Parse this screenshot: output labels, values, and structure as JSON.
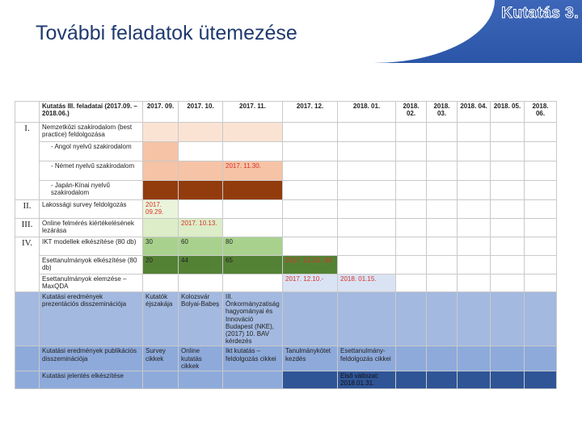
{
  "header": {
    "title": "További feladatok ütemezése",
    "slide_tag": "Kutatás 3."
  },
  "schedule": {
    "headers": [
      "Kutatás III. feladatai (2017.09. – 2018.06.)",
      "2017. 09.",
      "2017. 10.",
      "2017. 11.",
      "2017. 12.",
      "2018. 01.",
      "2018. 02.",
      "2018. 03.",
      "2018. 04.",
      "2018. 05.",
      "2018. 06."
    ],
    "groups": [
      "I.",
      "II.",
      "III.",
      "IV."
    ],
    "rows": [
      {
        "task": "Nemzetközi szakirodalom (best practice) feldolgozása",
        "cells": [
          "",
          "",
          "",
          "",
          "",
          "",
          "",
          "",
          "",
          ""
        ]
      },
      {
        "task": "- Angol nyelvű szakirodalom",
        "cells": [
          "",
          "",
          "",
          "",
          "",
          "",
          "",
          "",
          "",
          ""
        ]
      },
      {
        "task": "- Német nyelvű szakirodalom",
        "cells": [
          "",
          "",
          "2017. 11.30.",
          "",
          "",
          "",
          "",
          "",
          "",
          ""
        ]
      },
      {
        "task": "- Japán-Kínai nyelvű szakirodalom",
        "cells": [
          "",
          "",
          "",
          "",
          "",
          "",
          "",
          "",
          "",
          ""
        ]
      },
      {
        "task": "Lakossági survey feldolgozás",
        "cells": [
          "2017. 09.29.",
          "",
          "",
          "",
          "",
          "",
          "",
          "",
          "",
          ""
        ]
      },
      {
        "task": "Online felmérés kiértékelésének lezárása",
        "cells": [
          "",
          "2017. 10.13.",
          "",
          "",
          "",
          "",
          "",
          "",
          "",
          ""
        ]
      },
      {
        "task": "IKT modellek elkészítése (80 db)",
        "cells": [
          "30",
          "60",
          "80",
          "",
          "",
          "",
          "",
          "",
          "",
          ""
        ]
      },
      {
        "task": "Esettanulmányok elkészítése (80 db)",
        "cells": [
          "20",
          "44",
          "65",
          "2017. 12.10.: 80",
          "",
          "",
          "",
          "",
          "",
          ""
        ]
      },
      {
        "task": "Esettanulmányok elemzése – MaxQDA",
        "cells": [
          "",
          "",
          "",
          "2017. 12.10.-",
          "2018. 01.15.",
          "",
          "",
          "",
          "",
          ""
        ]
      },
      {
        "task": "Kutatási eredmények prezentációs disszeminációja",
        "cells": [
          "Kutatók éjszakája",
          "Kolozsvár Bolyai-Babeș",
          "III. Önkormányzatiság hagyományai és Innováció Budapest (NKE), (2017) 10. BAV kérdezés",
          "",
          "",
          "",
          "",
          "",
          "",
          ""
        ]
      },
      {
        "task": "Kutatási eredmények publikációs disszeminációja",
        "cells": [
          "Survey cikkek",
          "Online kutatás cikkek",
          "Ikt kutatás – feldolgozás cikkei",
          "Tanulmánykötet kezdés",
          "Esettanulmány-feldolgozás cikkei",
          "",
          "",
          "",
          "",
          ""
        ]
      },
      {
        "task": "Kutatási jelentés elkészítése",
        "cells": [
          "",
          "",
          "",
          "",
          "Első változat: 2018.01.31.",
          "",
          "",
          "",
          "",
          ""
        ]
      }
    ]
  },
  "colors": {
    "header_band": "#2b56a8",
    "peach": "#fbe3d4",
    "salmon": "#f6c3a6",
    "brown": "#923c0d",
    "light_green": "#dcedc8",
    "mid_green": "#a9d18e",
    "dark_green": "#548235",
    "light_blue": "#dae3f3",
    "mid_blue": "#a3b9e0",
    "blue": "#8eaadb",
    "dark_blue": "#2f5597"
  }
}
